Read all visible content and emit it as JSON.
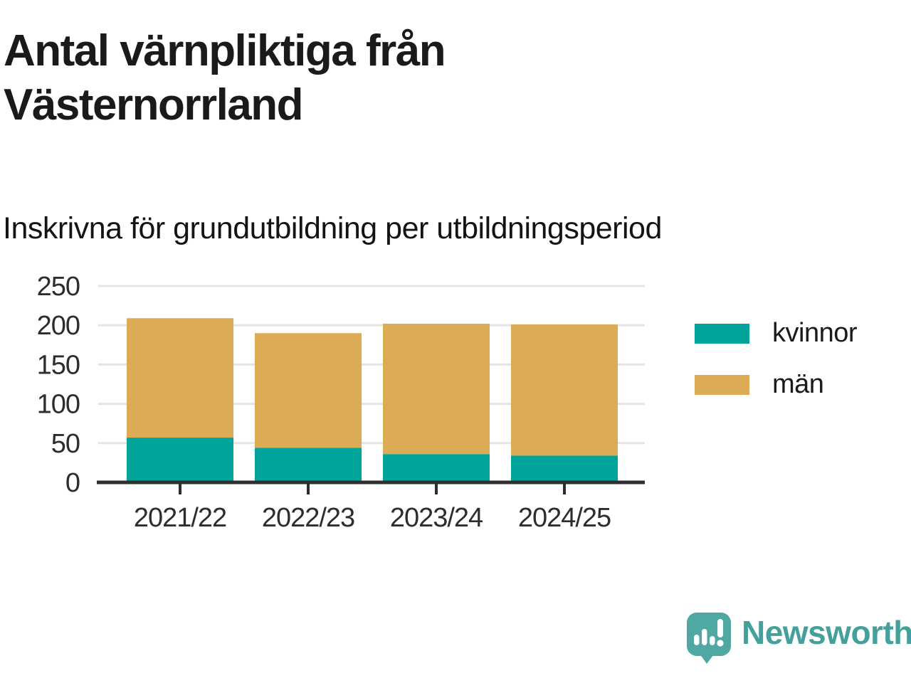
{
  "title": "Antal värnpliktiga från Västernorrland",
  "subtitle": "Inskrivna för grundutbildning per utbildningsperiod",
  "chart_data": {
    "type": "bar",
    "stacked": true,
    "title": "Antal värnpliktiga från Västernorrland",
    "subtitle": "Inskrivna för grundutbildning per utbildningsperiod",
    "categories": [
      "2021/22",
      "2022/23",
      "2023/24",
      "2024/25"
    ],
    "series": [
      {
        "name": "kvinnor",
        "color": "#00a49a",
        "values": [
          57,
          44,
          36,
          34
        ]
      },
      {
        "name": "män",
        "color": "#dbab56",
        "values": [
          152,
          146,
          166,
          167
        ]
      }
    ],
    "totals": [
      209,
      190,
      202,
      201
    ],
    "xlabel": "",
    "ylabel": "",
    "ylim": [
      0,
      250
    ],
    "yticks": [
      0,
      50,
      100,
      150,
      200,
      250
    ],
    "grid": true,
    "legend_position": "right"
  },
  "legend": {
    "items": [
      {
        "label": "kvinnor",
        "color": "#00a49a"
      },
      {
        "label": "män",
        "color": "#dbab56"
      }
    ]
  },
  "colors": {
    "axis": "#2e2e2e",
    "gridline": "#e4e4e4",
    "tick_label": "#2d2d2d"
  },
  "branding": {
    "name": "Newsworthy",
    "text_color": "#45a09b",
    "mark_color": "#4fa8a2"
  }
}
